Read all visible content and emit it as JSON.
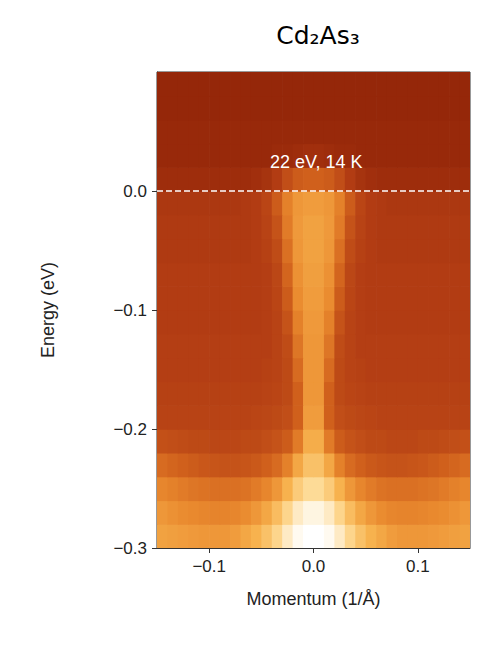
{
  "chart_data": {
    "type": "heatmap",
    "title": "Cd₂As₃",
    "annotations": [
      "22 eV, 14 K"
    ],
    "x_label": "Momentum (1/Å)",
    "y_label": "Energy (eV)",
    "xlim": [
      -0.15,
      0.15
    ],
    "ylim": [
      -0.3,
      0.1
    ],
    "xticks": [
      {
        "value": -0.1,
        "label": "−0.1"
      },
      {
        "value": 0,
        "label": "0.0"
      },
      0.1
    ],
    "yticks": [
      {
        "value": -0.3,
        "label": "−0.3"
      },
      {
        "value": -0.2,
        "label": "−0.2"
      },
      {
        "value": -0.1,
        "label": "−0.1"
      },
      {
        "value": 0,
        "label": "0.0"
      }
    ],
    "hlines": [
      {
        "y": 0,
        "line_style": "dashed",
        "color": "#ffffff"
      }
    ],
    "grid": false,
    "zlim": [
      0,
      100
    ],
    "x": [
      -0.145,
      -0.135,
      -0.125,
      -0.115,
      -0.105,
      -0.095,
      -0.085,
      -0.075,
      -0.065,
      -0.055,
      -0.045,
      -0.035,
      -0.025,
      -0.015,
      -0.005,
      0.005,
      0.015,
      0.025,
      0.035,
      0.045,
      0.055,
      0.065,
      0.075,
      0.085,
      0.095,
      0.105,
      0.115,
      0.125,
      0.135,
      0.145
    ],
    "y": [
      -0.29,
      -0.27,
      -0.25,
      -0.23,
      -0.21,
      -0.19,
      -0.17,
      -0.15,
      -0.13,
      -0.11,
      -0.09,
      -0.07,
      -0.05,
      -0.03,
      -0.01,
      0.01,
      0.03,
      0.05,
      0.07,
      0.09
    ],
    "z": [
      [
        64,
        63,
        62,
        61,
        60,
        60,
        60,
        62,
        66,
        70,
        76,
        84,
        92,
        98,
        100,
        100,
        98,
        92,
        84,
        76,
        70,
        66,
        62,
        60,
        60,
        60,
        61,
        62,
        63,
        64
      ],
      [
        60,
        58,
        56,
        55,
        54,
        53,
        53,
        54,
        56,
        60,
        66,
        74,
        84,
        92,
        96,
        96,
        92,
        84,
        74,
        66,
        60,
        56,
        54,
        53,
        53,
        54,
        55,
        56,
        58,
        60
      ],
      [
        54,
        52,
        50,
        48,
        47,
        46,
        46,
        46,
        47,
        50,
        54,
        60,
        70,
        80,
        86,
        86,
        80,
        70,
        60,
        54,
        50,
        47,
        46,
        46,
        46,
        47,
        48,
        50,
        52,
        54
      ],
      [
        44,
        42,
        40,
        38,
        36,
        35,
        34,
        34,
        35,
        37,
        40,
        44,
        52,
        66,
        76,
        76,
        66,
        52,
        44,
        40,
        37,
        35,
        34,
        34,
        35,
        36,
        38,
        40,
        42,
        44
      ],
      [
        33,
        32,
        31,
        30,
        30,
        29,
        29,
        29,
        30,
        30,
        32,
        34,
        38,
        50,
        68,
        68,
        50,
        38,
        34,
        32,
        30,
        30,
        29,
        29,
        29,
        30,
        30,
        31,
        32,
        33
      ],
      [
        27,
        27,
        27,
        27,
        27,
        27,
        27,
        27,
        27,
        28,
        29,
        30,
        32,
        40,
        62,
        62,
        40,
        32,
        30,
        29,
        28,
        27,
        27,
        27,
        27,
        27,
        27,
        27,
        27,
        27
      ],
      [
        26,
        26,
        26,
        26,
        26,
        26,
        26,
        26,
        26,
        26,
        27,
        28,
        30,
        40,
        60,
        60,
        40,
        30,
        28,
        27,
        26,
        26,
        26,
        26,
        26,
        26,
        26,
        26,
        26,
        26
      ],
      [
        25,
        25,
        25,
        25,
        25,
        25,
        25,
        25,
        25,
        25,
        26,
        27,
        30,
        44,
        60,
        60,
        44,
        30,
        27,
        26,
        25,
        25,
        25,
        25,
        25,
        25,
        25,
        25,
        25,
        25
      ],
      [
        25,
        25,
        25,
        25,
        25,
        25,
        25,
        25,
        25,
        25,
        25,
        27,
        31,
        48,
        60,
        60,
        48,
        31,
        27,
        25,
        25,
        25,
        25,
        25,
        25,
        25,
        25,
        25,
        25,
        25
      ],
      [
        24,
        24,
        24,
        24,
        24,
        24,
        24,
        24,
        24,
        24,
        25,
        27,
        34,
        52,
        61,
        61,
        52,
        34,
        27,
        25,
        24,
        24,
        24,
        24,
        24,
        24,
        24,
        24,
        24,
        24
      ],
      [
        24,
        24,
        24,
        24,
        24,
        24,
        24,
        24,
        24,
        24,
        25,
        28,
        38,
        56,
        62,
        62,
        56,
        38,
        28,
        25,
        24,
        24,
        24,
        24,
        24,
        24,
        24,
        24,
        24,
        24
      ],
      [
        24,
        24,
        24,
        24,
        24,
        24,
        24,
        24,
        24,
        24,
        25,
        29,
        42,
        58,
        63,
        63,
        58,
        42,
        29,
        25,
        24,
        24,
        24,
        24,
        24,
        24,
        24,
        24,
        24,
        24
      ],
      [
        23,
        23,
        23,
        23,
        23,
        23,
        23,
        23,
        23,
        24,
        26,
        31,
        46,
        60,
        64,
        64,
        60,
        46,
        31,
        26,
        24,
        23,
        23,
        23,
        23,
        23,
        23,
        23,
        23,
        23
      ],
      [
        23,
        23,
        23,
        23,
        23,
        23,
        23,
        23,
        23,
        24,
        27,
        34,
        50,
        61,
        64,
        64,
        61,
        50,
        34,
        27,
        24,
        23,
        23,
        23,
        23,
        23,
        23,
        23,
        23,
        23
      ],
      [
        22,
        22,
        22,
        22,
        22,
        22,
        22,
        22,
        23,
        24,
        28,
        38,
        52,
        60,
        62,
        62,
        60,
        52,
        38,
        28,
        24,
        23,
        22,
        22,
        22,
        22,
        22,
        22,
        22,
        22
      ],
      [
        17,
        17,
        17,
        17,
        17,
        17,
        17,
        17,
        17,
        18,
        20,
        24,
        32,
        38,
        40,
        40,
        38,
        32,
        24,
        20,
        18,
        17,
        17,
        17,
        17,
        17,
        17,
        17,
        17,
        17
      ],
      [
        15,
        15,
        15,
        15,
        15,
        15,
        15,
        15,
        15,
        15,
        15,
        16,
        16,
        17,
        18,
        18,
        17,
        16,
        16,
        15,
        15,
        15,
        15,
        15,
        15,
        15,
        15,
        15,
        15,
        15
      ],
      [
        15,
        15,
        15,
        15,
        15,
        15,
        15,
        15,
        15,
        15,
        15,
        15,
        15,
        15,
        15,
        15,
        15,
        15,
        15,
        15,
        15,
        15,
        15,
        15,
        15,
        15,
        15,
        15,
        15,
        15
      ],
      [
        14,
        14,
        14,
        14,
        14,
        14,
        14,
        14,
        14,
        14,
        14,
        14,
        14,
        14,
        14,
        14,
        14,
        14,
        14,
        14,
        14,
        14,
        14,
        14,
        14,
        14,
        14,
        14,
        14,
        14
      ],
      [
        14,
        14,
        14,
        14,
        14,
        14,
        14,
        14,
        14,
        14,
        14,
        14,
        14,
        14,
        14,
        14,
        14,
        14,
        14,
        14,
        14,
        14,
        14,
        14,
        14,
        14,
        14,
        14,
        14,
        14
      ]
    ]
  }
}
